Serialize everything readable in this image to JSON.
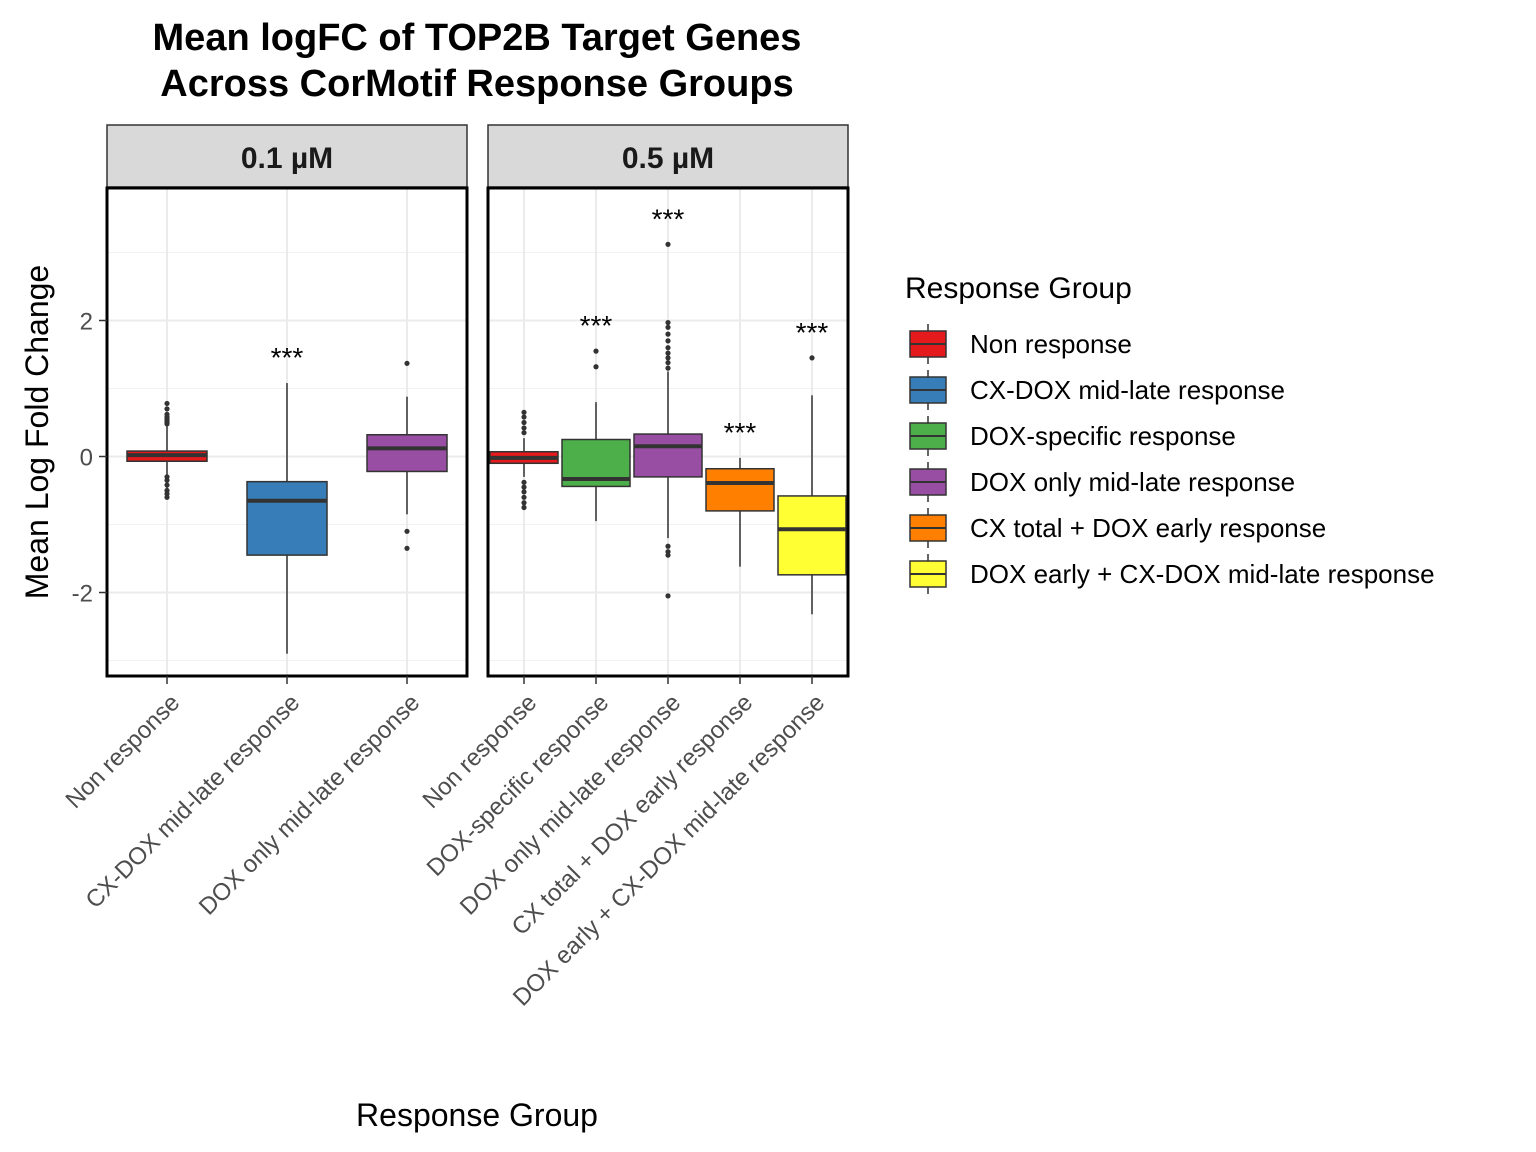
{
  "chart_data": {
    "type": "box",
    "title": [
      "Mean logFC of TOP2B Target Genes",
      "Across CorMotif Response Groups"
    ],
    "xlabel": "Response Group",
    "ylabel": "Mean Log Fold Change",
    "ylim": [
      -3.2,
      3.9
    ],
    "yticks": [
      -2,
      0,
      2
    ],
    "grid": true,
    "legend": {
      "title": "Response Group",
      "position": "right",
      "items": [
        {
          "label": "Non response",
          "color": "#E41A1C"
        },
        {
          "label": "CX-DOX mid-late response",
          "color": "#377EB8"
        },
        {
          "label": "DOX-specific response",
          "color": "#4DAF4A"
        },
        {
          "label": "DOX only mid-late response",
          "color": "#984EA3"
        },
        {
          "label": "CX total + DOX early response",
          "color": "#FF7F00"
        },
        {
          "label": "DOX early + CX-DOX mid-late response",
          "color": "#FFFF33"
        }
      ]
    },
    "panels": [
      {
        "strip": "0.1 µM",
        "categories": [
          "Non response",
          "CX-DOX mid-late response",
          "DOX only mid-late response"
        ],
        "boxes": [
          {
            "group": "Non response",
            "color": "#E41A1C",
            "min": -0.5,
            "q1": -0.07,
            "median": 0.02,
            "q3": 0.08,
            "max": 0.45,
            "outliers": [
              0.78,
              0.7,
              0.62,
              0.58,
              0.55,
              0.52,
              0.5,
              0.48,
              -0.3,
              -0.35,
              -0.42,
              -0.5,
              -0.55,
              -0.6
            ],
            "sig": ""
          },
          {
            "group": "CX-DOX mid-late response",
            "color": "#377EB8",
            "min": -2.9,
            "q1": -1.45,
            "median": -0.65,
            "q3": -0.37,
            "max": 1.08,
            "outliers": [],
            "sig": "***"
          },
          {
            "group": "DOX only mid-late response",
            "color": "#984EA3",
            "min": -0.85,
            "q1": -0.22,
            "median": 0.12,
            "q3": 0.32,
            "max": 0.88,
            "outliers": [
              1.37,
              -1.1,
              -1.35
            ],
            "sig": ""
          }
        ]
      },
      {
        "strip": "0.5 µM",
        "categories": [
          "Non response",
          "DOX-specific response",
          "DOX only mid-late response",
          "CX total + DOX early response",
          "DOX early + CX-DOX mid-late response"
        ],
        "boxes": [
          {
            "group": "Non response",
            "color": "#E41A1C",
            "min": -0.3,
            "q1": -0.1,
            "median": -0.02,
            "q3": 0.07,
            "max": 0.27,
            "outliers": [
              0.65,
              0.58,
              0.5,
              0.42,
              0.35,
              -0.38,
              -0.45,
              -0.52,
              -0.6,
              -0.68,
              -0.75
            ],
            "sig": ""
          },
          {
            "group": "DOX-specific response",
            "color": "#4DAF4A",
            "min": -0.95,
            "q1": -0.44,
            "median": -0.33,
            "q3": 0.25,
            "max": 0.8,
            "outliers": [
              1.55,
              1.32
            ],
            "sig": "***"
          },
          {
            "group": "DOX only mid-late response",
            "color": "#984EA3",
            "min": -1.2,
            "q1": -0.3,
            "median": 0.15,
            "q3": 0.33,
            "max": 1.25,
            "outliers": [
              3.12,
              1.97,
              1.9,
              1.8,
              1.7,
              1.6,
              1.52,
              1.45,
              1.38,
              1.3,
              -1.32,
              -1.4,
              -1.45,
              -2.05
            ],
            "sig": "***"
          },
          {
            "group": "CX total + DOX early response",
            "color": "#FF7F00",
            "min": -1.62,
            "q1": -0.8,
            "median": -0.39,
            "q3": -0.18,
            "max": -0.02,
            "outliers": [],
            "sig": "***"
          },
          {
            "group": "DOX early + CX-DOX mid-late response",
            "color": "#FFFF33",
            "min": -2.32,
            "q1": -1.74,
            "median": -1.07,
            "q3": -0.58,
            "max": 0.9,
            "outliers": [
              1.45
            ],
            "sig": "***"
          }
        ]
      }
    ]
  }
}
